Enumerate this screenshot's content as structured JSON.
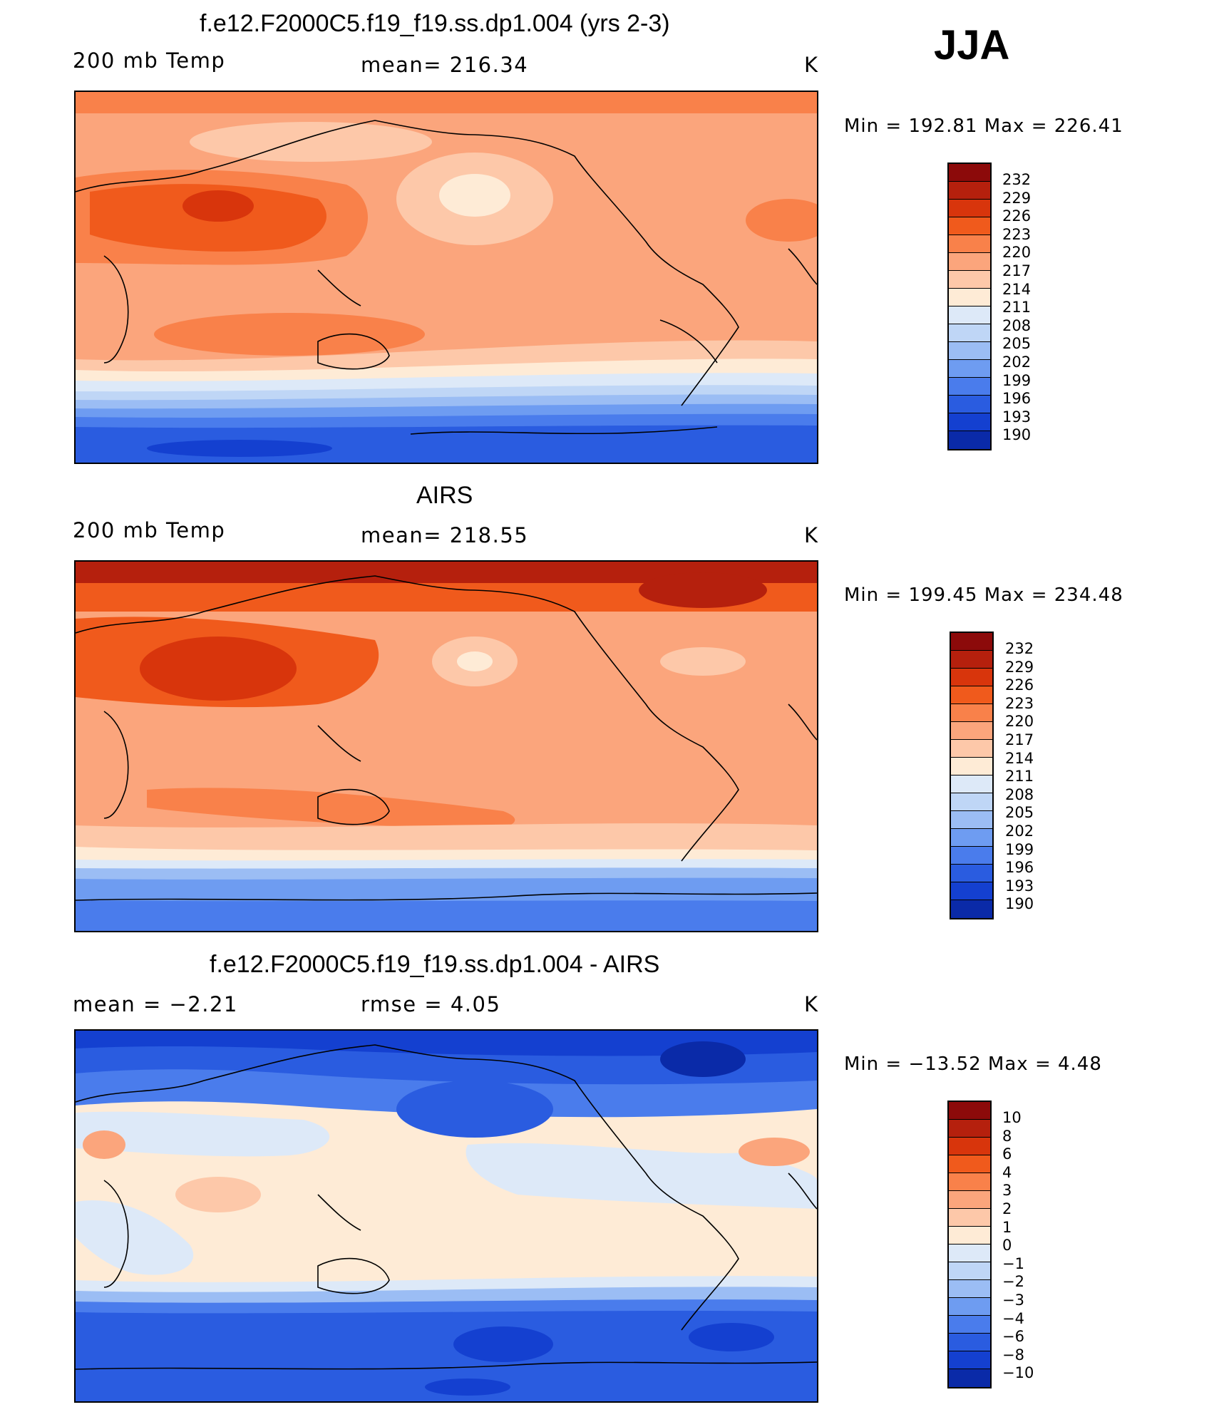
{
  "season": "JJA",
  "panels": [
    {
      "title": "f.e12.F2000C5.f19_f19.ss.dp1.004 (yrs 2-3)",
      "left_label": "200 mb Temp",
      "center_label": "mean=  216.34",
      "right_label": "K",
      "minmax": "Min  =  192.81  Max  =  226.41",
      "colorbar": {
        "labels": [
          "232",
          "229",
          "226",
          "223",
          "220",
          "217",
          "214",
          "211",
          "208",
          "205",
          "202",
          "199",
          "196",
          "193",
          "190"
        ],
        "colors": [
          "#8c0a0a",
          "#b5200d",
          "#d8350c",
          "#f05a1c",
          "#f9814a",
          "#fba57c",
          "#fdc8a9",
          "#feebd6",
          "#dde9f8",
          "#bfd6f6",
          "#9bbdf4",
          "#6e9cf1",
          "#4a7cec",
          "#2a5ce0",
          "#1440d0",
          "#0a2aa8",
          "#061a80"
        ]
      },
      "field_colors": [
        "#f9814a",
        "#fba57c",
        "#fdc8a9",
        "#feebd6",
        "#dde9f8",
        "#bfd6f6",
        "#9bbdf4",
        "#6e9cf1",
        "#4a7cec",
        "#2a5ce0",
        "#d8350c",
        "#b5200d"
      ]
    },
    {
      "title": "AIRS",
      "left_label": "200 mb Temp",
      "center_label": "mean=  218.55",
      "right_label": "K",
      "minmax": "Min  =  199.45  Max  =  234.48",
      "colorbar": {
        "labels": [
          "232",
          "229",
          "226",
          "223",
          "220",
          "217",
          "214",
          "211",
          "208",
          "205",
          "202",
          "199",
          "196",
          "193",
          "190"
        ],
        "colors": [
          "#8c0a0a",
          "#b5200d",
          "#d8350c",
          "#f05a1c",
          "#f9814a",
          "#fba57c",
          "#fdc8a9",
          "#feebd6",
          "#dde9f8",
          "#bfd6f6",
          "#9bbdf4",
          "#6e9cf1",
          "#4a7cec",
          "#2a5ce0",
          "#1440d0",
          "#0a2aa8",
          "#061a80"
        ]
      }
    },
    {
      "title": "f.e12.F2000C5.f19_f19.ss.dp1.004 - AIRS",
      "left_label": "mean  =    −2.21",
      "center_label": "rmse  =     4.05",
      "right_label": "K",
      "minmax": "Min  =  −13.52  Max  =     4.48",
      "colorbar": {
        "labels": [
          "10",
          "8",
          "6",
          "4",
          "3",
          "2",
          "1",
          "0",
          "−1",
          "−2",
          "−3",
          "−4",
          "−6",
          "−8",
          "−10"
        ],
        "colors": [
          "#8c0a0a",
          "#b5200d",
          "#d8350c",
          "#f05a1c",
          "#f9814a",
          "#fba57c",
          "#fdc8a9",
          "#feebd6",
          "#dde9f8",
          "#bfd6f6",
          "#9bbdf4",
          "#6e9cf1",
          "#4a7cec",
          "#2a5ce0",
          "#1440d0",
          "#0a2aa8",
          "#061a80"
        ]
      }
    }
  ]
}
